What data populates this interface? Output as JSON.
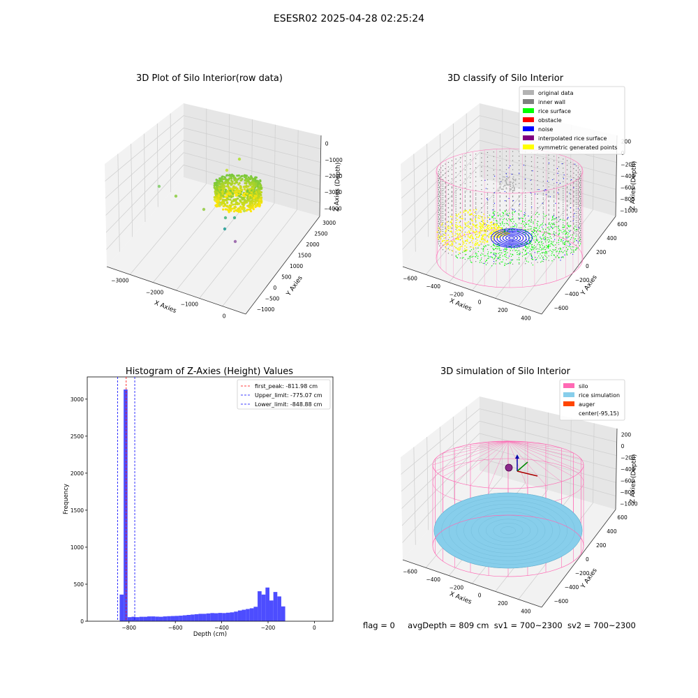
{
  "figure": {
    "suptitle": "ESESR02 2025-04-28 02:25:24"
  },
  "status": {
    "flag": "flag = 0",
    "avg_depth": "avgDepth = 809 cm",
    "sv1": "sv1 = 700~2300",
    "sv2": "sv2 = 700~2300"
  },
  "colors": {
    "grey_light": "#b3b3b3",
    "grey_dark": "#808080",
    "rice_surface": "#00ff00",
    "obstacle": "#ff0000",
    "noise": "#0000ff",
    "interpolated": "#800080",
    "symmetric": "#ffff00",
    "silo": "#ff69b4",
    "rice_sim": "#87ceeb",
    "auger": "#ff4500",
    "hist_bar": "#4d4dff"
  },
  "chart_data": [
    {
      "type": "scatter",
      "subtype": "3d",
      "title": "3D Plot of Silo Interior(row data)",
      "xlabel": "X Axies",
      "ylabel": "Y Axies",
      "zlabel": "Z Axies (Depth)",
      "x_ticks": [
        "−3000",
        "−2000",
        "−1000",
        "0"
      ],
      "y_ticks": [
        "−1000",
        "−500",
        "0",
        "500",
        "1000",
        "1500",
        "2000",
        "2500",
        "3000"
      ],
      "z_ticks": [
        "0",
        "−1000",
        "−2000",
        "−3000",
        "−4000"
      ],
      "grid": true
    },
    {
      "type": "scatter",
      "subtype": "3d",
      "title": "3D classify of Silo Interior",
      "xlabel": "X Axies",
      "ylabel": "Y Axies",
      "zlabel": "Z Axies (Depth)",
      "x_ticks": [
        "−600",
        "−400",
        "−200",
        "0",
        "200",
        "400"
      ],
      "y_ticks": [
        "−600",
        "−400",
        "−200",
        "0",
        "200",
        "400",
        "600"
      ],
      "z_ticks": [
        "200",
        "0",
        "−200",
        "−400",
        "−600",
        "−800",
        "−1000"
      ],
      "legend": {
        "placement": "top-right",
        "entries": [
          {
            "label": "original data",
            "color": "#b3b3b3"
          },
          {
            "label": "inner wall",
            "color": "#808080"
          },
          {
            "label": "rice surface",
            "color": "#00ff00"
          },
          {
            "label": "obstacle",
            "color": "#ff0000"
          },
          {
            "label": "noise",
            "color": "#0000ff"
          },
          {
            "label": "interpolated rice surface",
            "color": "#800080"
          },
          {
            "label": "symmetric generated points",
            "color": "#ffff00"
          }
        ]
      },
      "grid": true
    },
    {
      "type": "bar",
      "subtype": "histogram",
      "title": "Histogram of Z-Axies (Height) Values",
      "xlabel": "Depth (cm)",
      "ylabel": "Frequency",
      "xlim": [
        -980,
        80
      ],
      "ylim": [
        0,
        3300
      ],
      "x_ticks": [
        -800,
        -600,
        -400,
        -200,
        0
      ],
      "x_tick_labels": [
        "−800",
        "−600",
        "−400",
        "−200",
        "0"
      ],
      "y_ticks": [
        0,
        500,
        1000,
        1500,
        2000,
        2500,
        3000
      ],
      "y_tick_labels": [
        "0",
        "500",
        "1000",
        "1500",
        "2000",
        "2500",
        "3000"
      ],
      "bin_start": -840,
      "bin_width": 17,
      "values": [
        360,
        3130,
        55,
        60,
        55,
        60,
        60,
        65,
        65,
        62,
        60,
        65,
        68,
        70,
        72,
        75,
        80,
        85,
        90,
        95,
        100,
        100,
        105,
        110,
        108,
        112,
        110,
        115,
        120,
        130,
        145,
        155,
        165,
        175,
        195,
        405,
        360,
        455,
        280,
        395,
        335,
        200
      ],
      "lines": [
        {
          "label": "first_peak: -811.98 cm",
          "x": -811.98,
          "color": "#ff0000"
        },
        {
          "label": "Upper_limit: -775.07 cm",
          "x": -775.07,
          "color": "#0000ff"
        },
        {
          "label": "Lower_limit: -848.88 cm",
          "x": -848.88,
          "color": "#0000ff"
        }
      ],
      "legend_placement": "top-right"
    },
    {
      "type": "scatter",
      "subtype": "3d",
      "title": "3D simulation of Silo Interior",
      "xlabel": "X Axies",
      "ylabel": "Y Axies",
      "zlabel": "Z Axies (Depth)",
      "x_ticks": [
        "−600",
        "−400",
        "−200",
        "0",
        "200",
        "400"
      ],
      "y_ticks": [
        "−600",
        "−400",
        "−200",
        "0",
        "200",
        "400",
        "600"
      ],
      "z_ticks": [
        "200",
        "0",
        "−200",
        "−400",
        "−600",
        "−800",
        "−1000"
      ],
      "legend": {
        "placement": "top-right",
        "entries": [
          {
            "label": "silo",
            "color": "#ff69b4"
          },
          {
            "label": "rice simulation",
            "color": "#87ceeb"
          },
          {
            "label": "auger",
            "color": "#ff4500"
          },
          {
            "label": "center(-95,15)",
            "color": "#ffffff"
          }
        ]
      },
      "grid": true
    }
  ]
}
